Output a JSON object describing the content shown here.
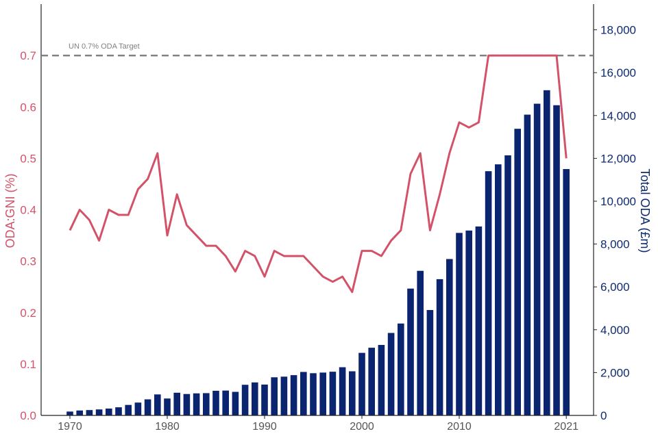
{
  "chart_data": {
    "type": "bar+line",
    "title": "",
    "xlabel": "",
    "ylabel_left": "ODA:GNI (%)",
    "ylabel_right": "Total ODA (£m)",
    "x_ticks": [
      "1970",
      "1980",
      "1990",
      "2000",
      "2010",
      "2021"
    ],
    "x_tick_years": [
      1970,
      1980,
      1990,
      2000,
      2010,
      2021
    ],
    "ylim_left": [
      0,
      0.8
    ],
    "ylim_right": [
      0,
      19200
    ],
    "y_ticks_left": [
      "0.0",
      "0.1",
      "0.2",
      "0.3",
      "0.4",
      "0.5",
      "0.6",
      "0.7"
    ],
    "y_tick_values_left": [
      0,
      0.1,
      0.2,
      0.3,
      0.4,
      0.5,
      0.6,
      0.7
    ],
    "y_ticks_right": [
      "0",
      "2,000",
      "4,000",
      "6,000",
      "8,000",
      "10,000",
      "12,000",
      "14,000",
      "16,000",
      "18,000"
    ],
    "y_tick_values_right": [
      0,
      2000,
      4000,
      6000,
      8000,
      10000,
      12000,
      14000,
      16000,
      18000
    ],
    "target": {
      "label": "UN 0.7% ODA Target",
      "value": 0.7
    },
    "years": [
      1970,
      1971,
      1972,
      1973,
      1974,
      1975,
      1976,
      1977,
      1978,
      1979,
      1980,
      1981,
      1982,
      1983,
      1984,
      1985,
      1986,
      1987,
      1988,
      1989,
      1990,
      1991,
      1992,
      1993,
      1994,
      1995,
      1996,
      1997,
      1998,
      1999,
      2000,
      2001,
      2002,
      2003,
      2004,
      2005,
      2006,
      2007,
      2008,
      2009,
      2010,
      2011,
      2012,
      2013,
      2014,
      2015,
      2016,
      2017,
      2018,
      2019,
      2020,
      2021
    ],
    "series": [
      {
        "name": "Total ODA (£m)",
        "type": "bar",
        "axis": "right",
        "color": "#0a2470",
        "values": [
          180,
          230,
          250,
          280,
          320,
          380,
          490,
          600,
          750,
          980,
          790,
          1060,
          1000,
          1030,
          1040,
          1150,
          1160,
          1100,
          1430,
          1540,
          1440,
          1780,
          1810,
          1880,
          2030,
          1970,
          2000,
          2040,
          2250,
          2060,
          2920,
          3160,
          3290,
          3850,
          4290,
          5920,
          6750,
          4920,
          6360,
          7300,
          8520,
          8630,
          8820,
          11400,
          11720,
          12140,
          13380,
          14040,
          14550,
          15180,
          14480,
          11500
        ]
      },
      {
        "name": "ODA:GNI (%)",
        "type": "line",
        "axis": "left",
        "color": "#d35268",
        "values": [
          0.36,
          0.4,
          0.38,
          0.34,
          0.4,
          0.39,
          0.39,
          0.44,
          0.46,
          0.51,
          0.35,
          0.43,
          0.37,
          0.35,
          0.33,
          0.33,
          0.31,
          0.28,
          0.32,
          0.31,
          0.27,
          0.32,
          0.31,
          0.31,
          0.31,
          0.29,
          0.27,
          0.26,
          0.27,
          0.24,
          0.32,
          0.32,
          0.31,
          0.34,
          0.36,
          0.47,
          0.51,
          0.36,
          0.43,
          0.51,
          0.57,
          0.56,
          0.57,
          0.7,
          0.7,
          0.7,
          0.7,
          0.7,
          0.7,
          0.7,
          0.7,
          0.5
        ]
      }
    ]
  }
}
